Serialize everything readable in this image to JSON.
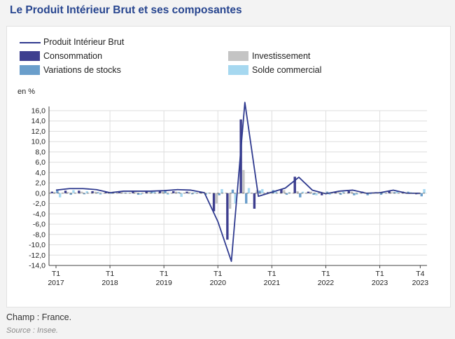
{
  "page": {
    "title": "Le Produit Intérieur Brut et ses composantes",
    "footnote": "Champ : France.",
    "source": "Source : Insee."
  },
  "chart_data": {
    "type": "bar",
    "title": "Le Produit Intérieur Brut et ses composantes",
    "ylabel": "en %",
    "xlabel": "",
    "ylim": [
      -14,
      17.6
    ],
    "yticks": [
      "16,0",
      "14,0",
      "12,0",
      "10,0",
      "8,0",
      "6,0",
      "4,0",
      "2,0",
      "0,0",
      "-2,0",
      "-4,0",
      "-6,0",
      "-8,0",
      "-10,0",
      "-12,0",
      "-14,0"
    ],
    "ytick_values": [
      16,
      14,
      12,
      10,
      8,
      6,
      4,
      2,
      0,
      -2,
      -4,
      -6,
      -8,
      -10,
      -12,
      -14
    ],
    "grid": true,
    "legend": "top",
    "categories": [
      "2017-T1",
      "2017-T2",
      "2017-T3",
      "2017-T4",
      "2018-T1",
      "2018-T2",
      "2018-T3",
      "2018-T4",
      "2019-T1",
      "2019-T2",
      "2019-T3",
      "2019-T4",
      "2020-T1",
      "2020-T2",
      "2020-T3",
      "2020-T4",
      "2021-T1",
      "2021-T2",
      "2021-T3",
      "2021-T4",
      "2022-T1",
      "2022-T2",
      "2022-T3",
      "2022-T4",
      "2023-T1",
      "2023-T2",
      "2023-T3",
      "2023-T4"
    ],
    "xticks": [
      {
        "index": 0,
        "q": "T1",
        "year": "2017"
      },
      {
        "index": 4,
        "q": "T1",
        "year": "2018"
      },
      {
        "index": 8,
        "q": "T1",
        "year": "2019"
      },
      {
        "index": 12,
        "q": "T1",
        "year": "2020"
      },
      {
        "index": 16,
        "q": "T1",
        "year": "2021"
      },
      {
        "index": 20,
        "q": "T1",
        "year": "2022"
      },
      {
        "index": 24,
        "q": "T1",
        "year": "2023"
      },
      {
        "index": 27,
        "q": "T4",
        "year": "2023"
      }
    ],
    "series": [
      {
        "name": "Consommation",
        "kind": "bar",
        "color": "#3e3f8f",
        "values": [
          0.3,
          0.5,
          0.5,
          0.4,
          0.2,
          0.2,
          0.3,
          0.3,
          0.4,
          0.4,
          0.3,
          0.3,
          -3.5,
          -9.0,
          14.3,
          -3.0,
          0.2,
          0.8,
          3.2,
          0.3,
          -0.4,
          0.2,
          0.4,
          0.3,
          0.2,
          0.4,
          0.3,
          -0.2
        ]
      },
      {
        "name": "Investissement",
        "kind": "bar",
        "color": "#c4c4c4",
        "values": [
          0.2,
          0.2,
          0.3,
          0.3,
          0.1,
          0.2,
          0.2,
          0.2,
          0.3,
          0.3,
          0.2,
          0.2,
          -2.0,
          -3.0,
          4.5,
          0.6,
          0.3,
          0.6,
          0.4,
          0.3,
          0.1,
          0.3,
          0.3,
          0.1,
          0.1,
          0.2,
          0.1,
          -0.2
        ]
      },
      {
        "name": "Variations de stocks",
        "kind": "bar",
        "color": "#6a9ecb",
        "values": [
          0.5,
          -0.3,
          -0.2,
          0.2,
          -0.1,
          0.1,
          -0.3,
          0.3,
          0.4,
          0.2,
          -0.2,
          -0.3,
          -0.4,
          0.7,
          -2.0,
          0.5,
          0.6,
          -0.3,
          -0.8,
          -0.3,
          0.3,
          -0.3,
          -0.4,
          -0.4,
          -0.3,
          0.2,
          0.3,
          -0.6
        ]
      },
      {
        "name": "Solde commercial",
        "kind": "bar",
        "color": "#a6d8f0",
        "values": [
          -0.8,
          0.6,
          0.4,
          -0.3,
          0.3,
          0.1,
          -0.3,
          0.4,
          -0.3,
          -0.7,
          0.2,
          0.1,
          0.8,
          -2.0,
          1.0,
          0.8,
          0.4,
          0.2,
          0.3,
          -0.4,
          -0.3,
          0.3,
          -0.3,
          -0.2,
          0.3,
          0.5,
          0.2,
          0.8
        ]
      },
      {
        "name": "Produit Intérieur Brut",
        "kind": "line",
        "color": "#2f3a8f",
        "values": [
          0.6,
          0.9,
          0.9,
          0.7,
          0.1,
          0.4,
          0.4,
          0.4,
          0.5,
          0.7,
          0.6,
          0.1,
          -5.5,
          -13.2,
          17.6,
          -0.6,
          0.2,
          1.0,
          3.1,
          0.6,
          -0.1,
          0.4,
          0.6,
          0.0,
          0.1,
          0.6,
          0.0,
          0.0
        ]
      }
    ]
  }
}
